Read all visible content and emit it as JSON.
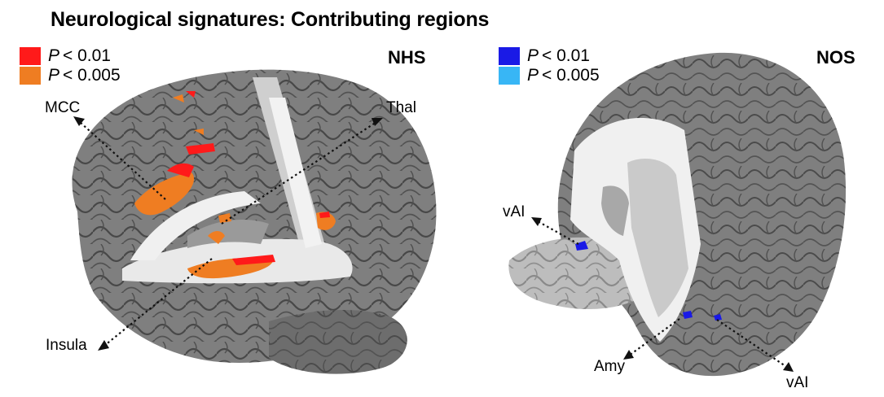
{
  "title": "Neurological signatures: Contributing regions",
  "panels": [
    {
      "id": "nhs",
      "label": "NHS",
      "legend": [
        {
          "p": "P",
          "op": "< 0.01",
          "color": "#ff1a1a"
        },
        {
          "p": "P",
          "op": "< 0.005",
          "color": "#ef7d22"
        }
      ],
      "regions": [
        "MCC",
        "Thal",
        "Insula"
      ]
    },
    {
      "id": "nos",
      "label": "NOS",
      "legend": [
        {
          "p": "P",
          "op": "< 0.01",
          "color": "#1a1ae6"
        },
        {
          "p": "P",
          "op": "< 0.005",
          "color": "#38b6f5"
        }
      ],
      "regions": [
        "vAI",
        "Amy",
        "vAI"
      ]
    }
  ]
}
